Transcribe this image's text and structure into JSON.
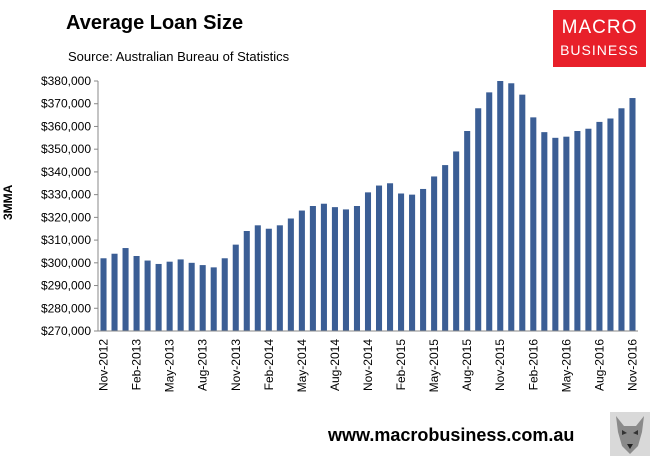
{
  "header": {
    "title": "Average Loan Size",
    "subtitle": "Source: Australian Bureau of Statistics"
  },
  "logo": {
    "line1": "MACRO",
    "line2": "BUSINESS",
    "color": "#e8202a"
  },
  "footer": {
    "url": "www.macrobusiness.com.au"
  },
  "chart_data": {
    "type": "bar",
    "ylabel": "3MMA",
    "xlabel": "",
    "ylim": [
      270000,
      380000
    ],
    "yticks": [
      270000,
      280000,
      290000,
      300000,
      310000,
      320000,
      330000,
      340000,
      350000,
      360000,
      370000,
      380000
    ],
    "ytick_labels": [
      "$270,000",
      "$280,000",
      "$290,000",
      "$300,000",
      "$310,000",
      "$320,000",
      "$330,000",
      "$340,000",
      "$350,000",
      "$360,000",
      "$370,000",
      "$380,000"
    ],
    "bar_color": "#3b5e95",
    "grid": false,
    "categories": [
      "Nov-2012",
      "Dec-2012",
      "Jan-2013",
      "Feb-2013",
      "Mar-2013",
      "Apr-2013",
      "May-2013",
      "Jun-2013",
      "Jul-2013",
      "Aug-2013",
      "Sep-2013",
      "Oct-2013",
      "Nov-2013",
      "Dec-2013",
      "Jan-2014",
      "Feb-2014",
      "Mar-2014",
      "Apr-2014",
      "May-2014",
      "Jun-2014",
      "Jul-2014",
      "Aug-2014",
      "Sep-2014",
      "Oct-2014",
      "Nov-2014",
      "Dec-2014",
      "Jan-2015",
      "Feb-2015",
      "Mar-2015",
      "Apr-2015",
      "May-2015",
      "Jun-2015",
      "Jul-2015",
      "Aug-2015",
      "Sep-2015",
      "Oct-2015",
      "Nov-2015",
      "Dec-2015",
      "Jan-2016",
      "Feb-2016",
      "Mar-2016",
      "Apr-2016",
      "May-2016",
      "Jun-2016",
      "Jul-2016",
      "Aug-2016",
      "Sep-2016",
      "Oct-2016",
      "Nov-2016"
    ],
    "values": [
      302000,
      304000,
      306500,
      303000,
      301000,
      299500,
      300500,
      301500,
      300000,
      299000,
      298000,
      302000,
      308000,
      314000,
      316500,
      315000,
      316500,
      319500,
      323000,
      325000,
      326000,
      324500,
      323500,
      325000,
      331000,
      334000,
      335000,
      330500,
      330000,
      332500,
      338000,
      343000,
      349000,
      358000,
      368000,
      375000,
      380000,
      379000,
      374000,
      364000,
      357500,
      355000,
      355500,
      358000,
      359000,
      362000,
      363500,
      368000,
      372500
    ],
    "xtick_labels": [
      "Nov-2012",
      "Feb-2013",
      "May-2013",
      "Aug-2013",
      "Nov-2013",
      "Feb-2014",
      "May-2014",
      "Aug-2014",
      "Nov-2014",
      "Feb-2015",
      "May-2015",
      "Aug-2015",
      "Nov-2015",
      "Feb-2016",
      "May-2016",
      "Aug-2016",
      "Nov-2016"
    ]
  }
}
